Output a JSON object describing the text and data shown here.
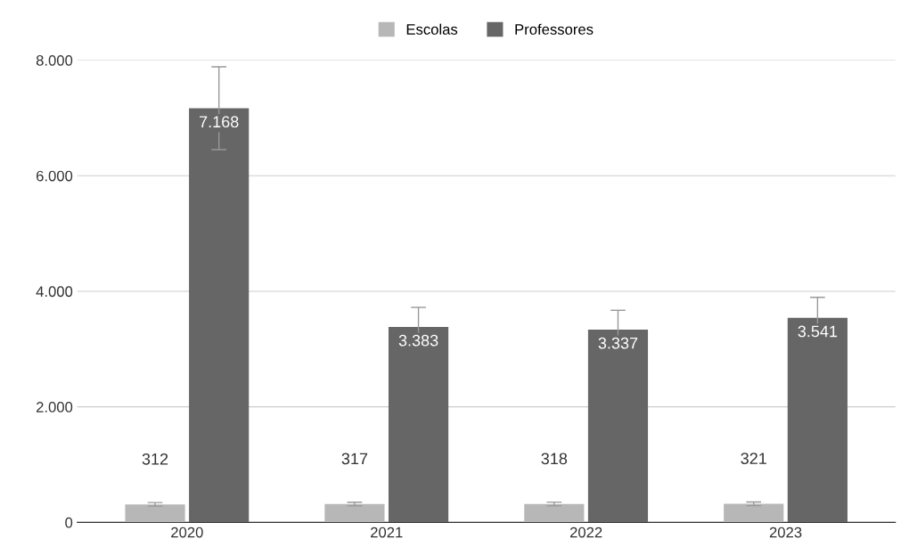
{
  "chart_data": {
    "type": "bar",
    "categories": [
      "2020",
      "2021",
      "2022",
      "2023"
    ],
    "series": [
      {
        "name": "Escolas",
        "color": "#b7b7b7",
        "values": [
          312,
          317,
          318,
          321
        ],
        "errors": [
          31,
          32,
          32,
          32
        ],
        "value_labels": [
          "312",
          "317",
          "318",
          "321"
        ]
      },
      {
        "name": "Professores",
        "color": "#666666",
        "values": [
          7168,
          3383,
          3337,
          3541
        ],
        "errors": [
          717,
          338,
          334,
          354
        ],
        "value_labels": [
          "7.168",
          "3.383",
          "3.337",
          "3.541"
        ]
      }
    ],
    "ylim": [
      0,
      8000
    ],
    "yticks": [
      {
        "value": 0,
        "label": "0"
      },
      {
        "value": 2000,
        "label": "2.000"
      },
      {
        "value": 4000,
        "label": "4.000"
      },
      {
        "value": 6000,
        "label": "6.000"
      },
      {
        "value": 8000,
        "label": "8.000"
      }
    ],
    "grid": "y",
    "legend": "top"
  }
}
